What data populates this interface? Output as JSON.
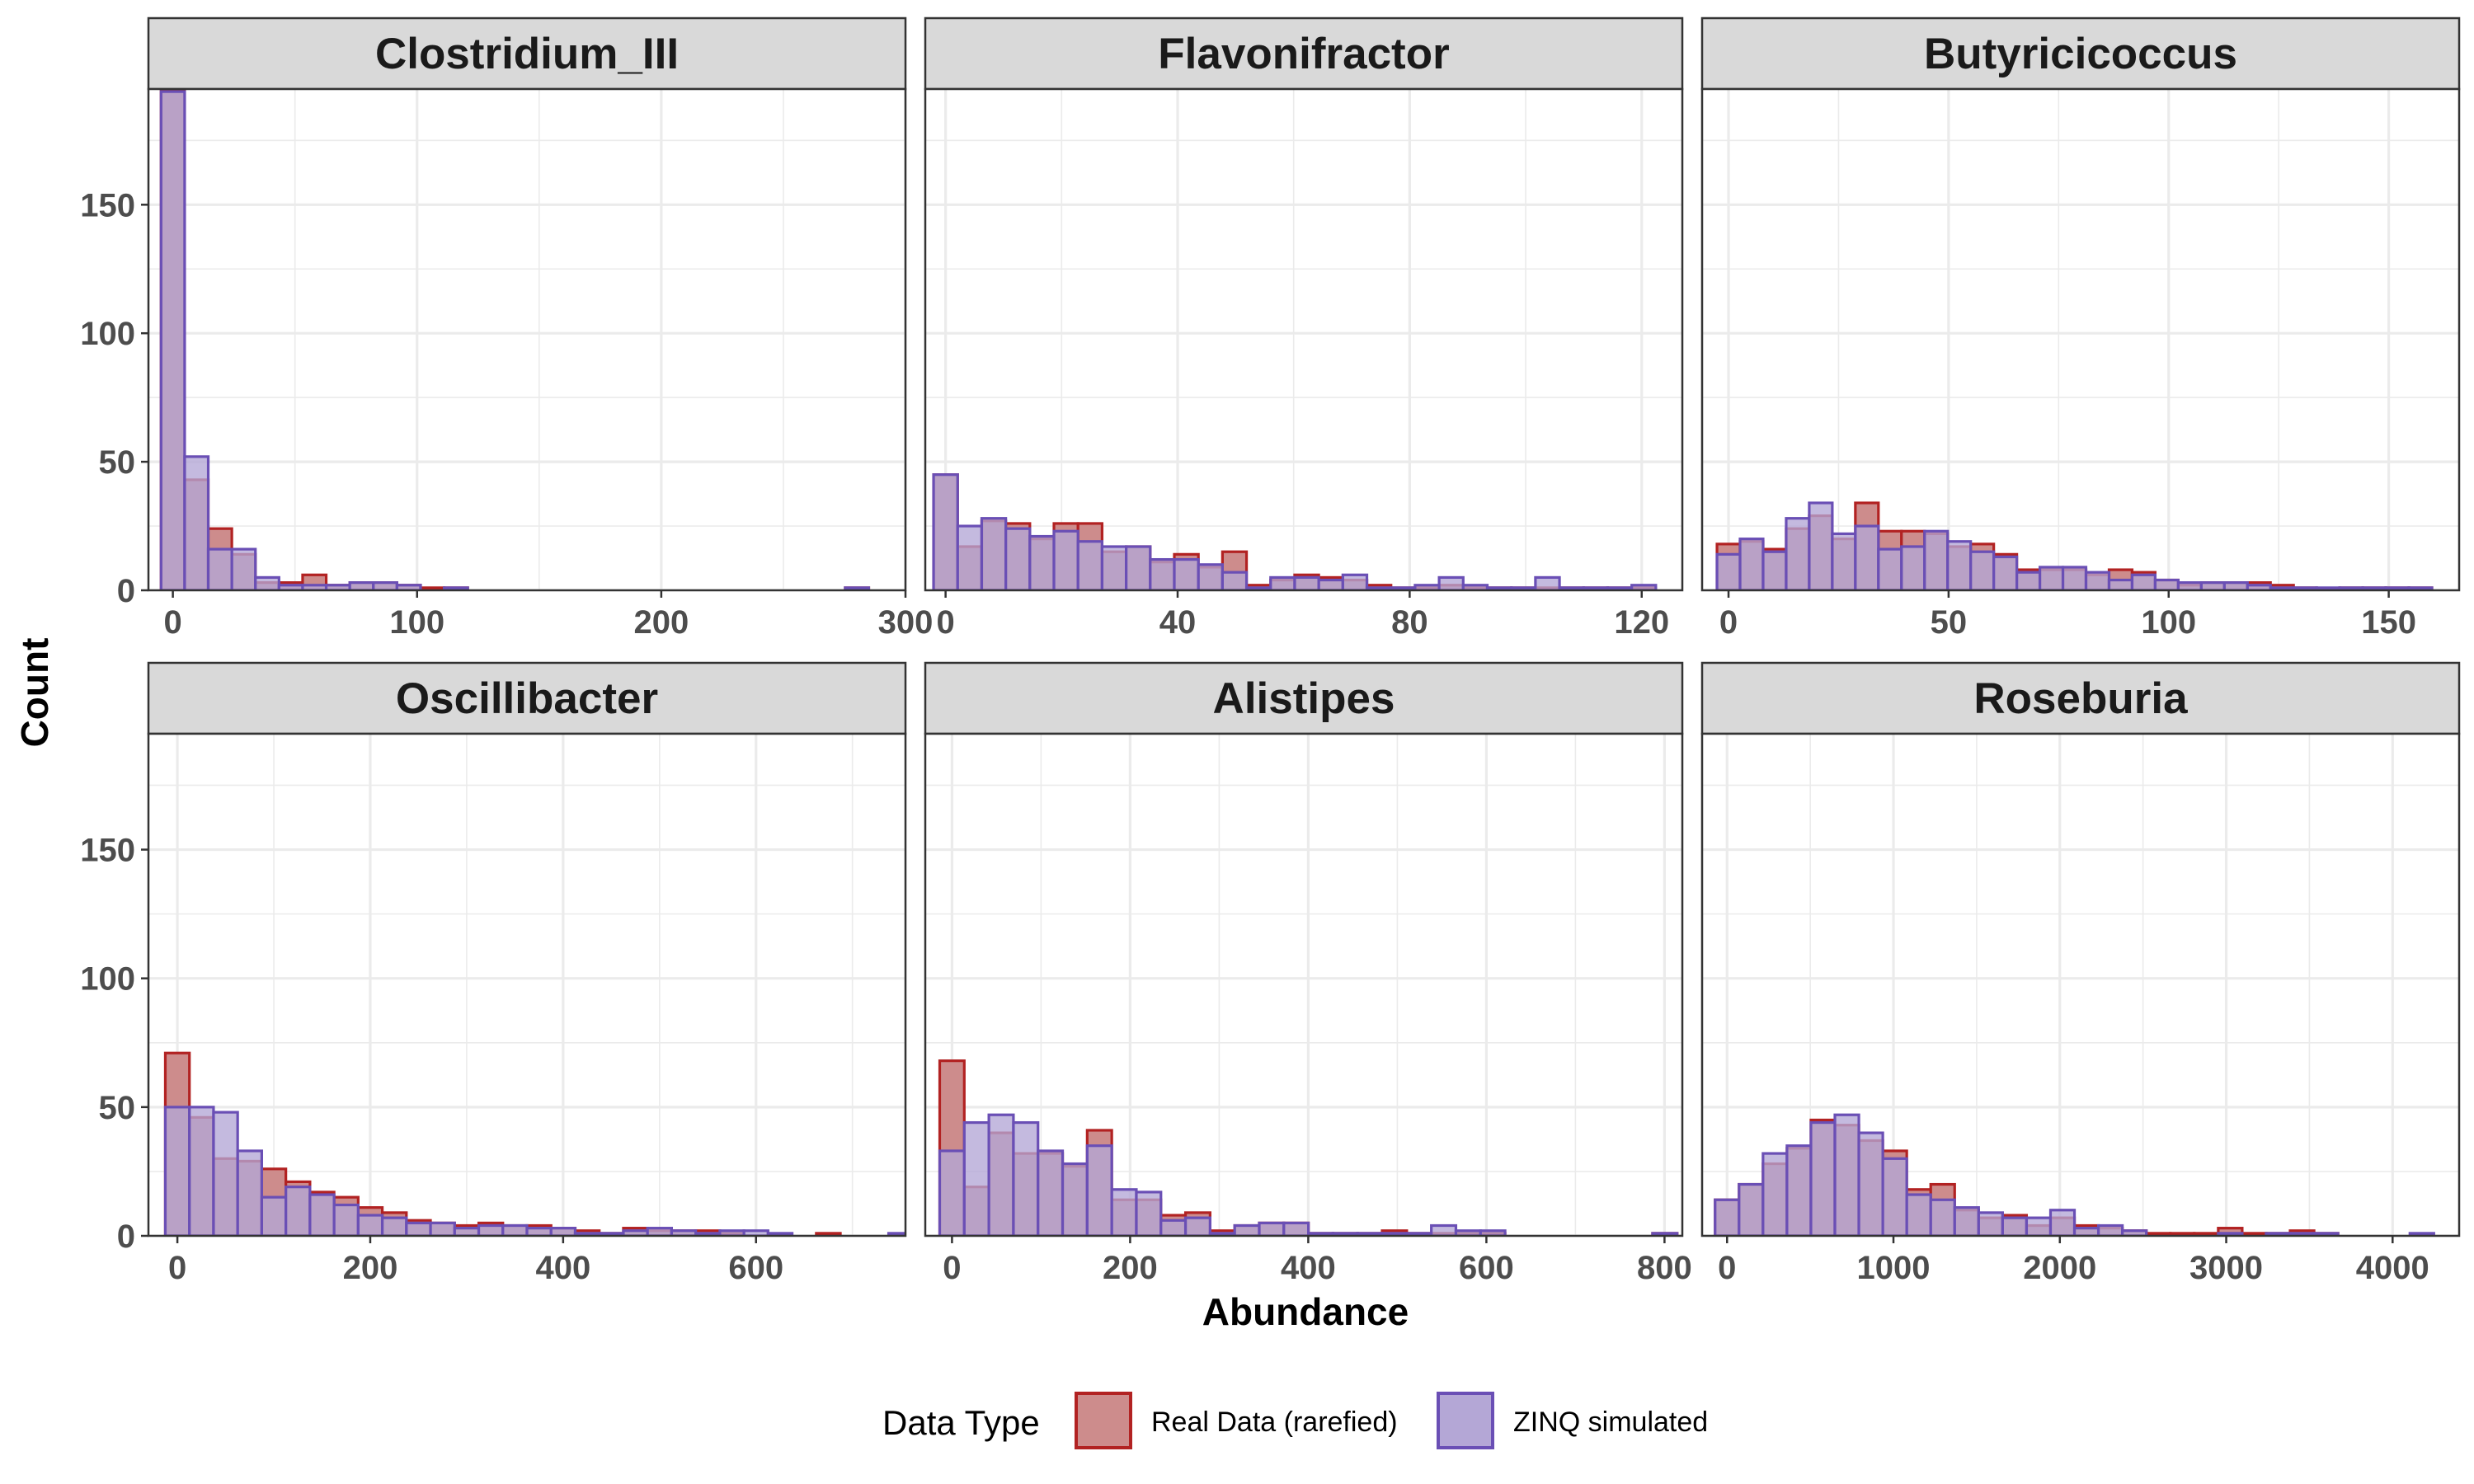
{
  "chart_data": {
    "type": "histogram-facets",
    "xlabel": "Abundance",
    "ylabel": "Count",
    "ylim": [
      0,
      195
    ],
    "yticks": [
      0,
      50,
      100,
      150
    ],
    "grid": true,
    "legend": {
      "title": "Data Type",
      "position": "bottom",
      "entries": [
        {
          "name": "Real Data (rarefied)",
          "fill": "#cd8c8c",
          "stroke": "#b22222"
        },
        {
          "name": "ZINQ simulated",
          "fill": "#b4a7d6",
          "stroke": "#6a4fb5"
        }
      ]
    },
    "series_names": [
      "Real Data (rarefied)",
      "ZINQ simulated"
    ],
    "panels": [
      {
        "title": "Clostridium_III",
        "xlim": [
          -10,
          300
        ],
        "xticks": [
          0,
          100,
          200,
          300
        ],
        "binwidth": 9.66,
        "bin_start": -4.83,
        "real": [
          195,
          43,
          24,
          14,
          3,
          3,
          6,
          2,
          3,
          3,
          2,
          1,
          1,
          0,
          0,
          0,
          0,
          0,
          0,
          0,
          0,
          0,
          0,
          0,
          0,
          0,
          0,
          0,
          0,
          1
        ],
        "sim": [
          194,
          52,
          16,
          16,
          5,
          2,
          2,
          2,
          3,
          3,
          2,
          0,
          1,
          0,
          0,
          0,
          0,
          0,
          0,
          0,
          0,
          0,
          0,
          0,
          0,
          0,
          0,
          0,
          0,
          1
        ]
      },
      {
        "title": "Flavonifractor",
        "xlim": [
          -3.5,
          127
        ],
        "xticks": [
          0,
          40,
          80,
          120
        ],
        "binwidth": 4.15,
        "bin_start": -2.07,
        "real": [
          45,
          17,
          27,
          26,
          20,
          26,
          26,
          15,
          17,
          11,
          14,
          9,
          15,
          2,
          4,
          6,
          5,
          4,
          2,
          1,
          1,
          2,
          1,
          1,
          1,
          1,
          1,
          1,
          1,
          1
        ],
        "sim": [
          45,
          25,
          28,
          24,
          21,
          23,
          19,
          17,
          17,
          12,
          12,
          10,
          7,
          1,
          5,
          5,
          4,
          6,
          1,
          1,
          2,
          5,
          2,
          1,
          1,
          5,
          1,
          1,
          1,
          2
        ]
      },
      {
        "title": "Butyricicoccus",
        "xlim": [
          -6,
          166
        ],
        "xticks": [
          0,
          50,
          100,
          150
        ],
        "binwidth": 5.24,
        "bin_start": -2.62,
        "real": [
          18,
          19,
          16,
          24,
          29,
          20,
          34,
          23,
          23,
          22,
          17,
          18,
          14,
          8,
          8,
          8,
          6,
          8,
          7,
          4,
          2,
          3,
          3,
          3,
          2,
          1,
          0,
          1,
          1,
          1,
          1
        ],
        "sim": [
          14,
          20,
          15,
          28,
          34,
          22,
          25,
          16,
          17,
          23,
          19,
          15,
          13,
          7,
          9,
          9,
          7,
          4,
          6,
          4,
          3,
          3,
          3,
          2,
          1,
          1,
          1,
          1,
          1,
          1,
          1
        ]
      },
      {
        "title": "Oscillibacter",
        "xlim": [
          -30,
          755
        ],
        "xticks": [
          0,
          200,
          400,
          600
        ],
        "binwidth": 25,
        "bin_start": -12.5,
        "real": [
          71,
          46,
          30,
          29,
          26,
          21,
          17,
          15,
          11,
          9,
          6,
          5,
          4,
          5,
          4,
          4,
          3,
          2,
          1,
          3,
          2,
          2,
          2,
          1,
          0,
          0,
          0,
          1,
          0,
          0,
          0
        ],
        "sim": [
          50,
          50,
          48,
          33,
          15,
          19,
          16,
          12,
          8,
          7,
          5,
          5,
          3,
          4,
          4,
          3,
          3,
          1,
          1,
          2,
          3,
          2,
          1,
          2,
          2,
          1,
          0,
          0,
          0,
          0,
          1
        ]
      },
      {
        "title": "Alistipes",
        "xlim": [
          -30,
          820
        ],
        "xticks": [
          0,
          200,
          400,
          600,
          800
        ],
        "binwidth": 27.6,
        "bin_start": -13.8,
        "real": [
          68,
          19,
          40,
          32,
          32,
          27,
          41,
          14,
          14,
          8,
          9,
          2,
          4,
          5,
          5,
          1,
          1,
          1,
          2,
          1,
          1,
          1,
          1,
          0,
          0,
          0,
          0,
          0,
          0,
          1
        ],
        "sim": [
          33,
          44,
          47,
          44,
          33,
          28,
          35,
          18,
          17,
          6,
          7,
          1,
          4,
          5,
          5,
          1,
          1,
          1,
          1,
          1,
          4,
          2,
          2,
          0,
          0,
          0,
          0,
          0,
          0,
          1
        ]
      },
      {
        "title": "Roseburia",
        "xlim": [
          -150,
          4400
        ],
        "xticks": [
          0,
          1000,
          2000,
          3000,
          4000
        ],
        "binwidth": 144,
        "bin_start": -72,
        "real": [
          14,
          20,
          28,
          34,
          45,
          43,
          37,
          33,
          18,
          20,
          10,
          7,
          8,
          4,
          7,
          4,
          3,
          2,
          1,
          1,
          1,
          3,
          1,
          1,
          2,
          1,
          0,
          0,
          0,
          0
        ],
        "sim": [
          14,
          20,
          32,
          35,
          44,
          47,
          40,
          30,
          16,
          14,
          11,
          9,
          7,
          7,
          10,
          3,
          4,
          2,
          0,
          0,
          0,
          1,
          0,
          1,
          1,
          1,
          0,
          0,
          0,
          1
        ]
      }
    ]
  }
}
